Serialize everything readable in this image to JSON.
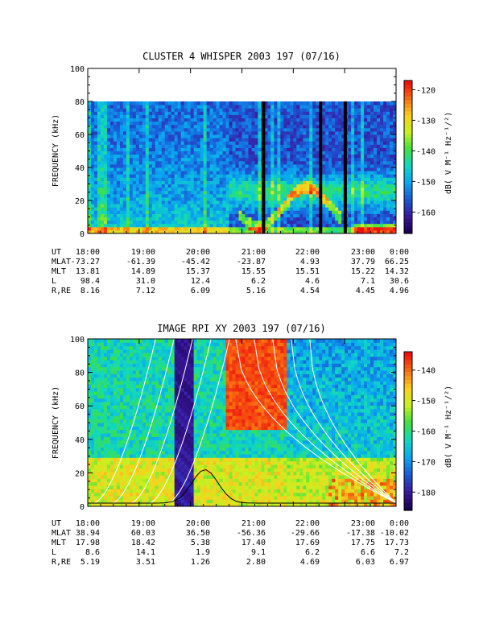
{
  "chart_data": [
    {
      "type": "heatmap",
      "title": "CLUSTER 4 WHISPER 2003 197 (07/16)",
      "ylabel": "FREQUENCY (kHz)",
      "ylim": [
        0,
        100
      ],
      "y_ticks": [
        "0",
        "20",
        "40",
        "60",
        "80",
        "100"
      ],
      "data_max_frequency_khz": 80,
      "x_ticks": [
        "18:00",
        "19:00",
        "20:00",
        "21:00",
        "22:00",
        "23:00",
        "0:00"
      ],
      "colorbar": {
        "label": "dB( V M⁻¹ Hz⁻¹/²)",
        "ticks": [
          "-120",
          "-130",
          "-140",
          "-150",
          "-160"
        ],
        "range": [
          -167,
          -117
        ]
      },
      "ephemeris": [
        {
          "label": "UT",
          "values": [
            "18:00",
            "19:00",
            "20:00",
            "21:00",
            "22:00",
            "23:00",
            "0:00"
          ]
        },
        {
          "label": "MLAT",
          "values": [
            "-73.27",
            "-61.39",
            "-45.42",
            "-23.87",
            "4.93",
            "37.79",
            "66.25"
          ]
        },
        {
          "label": "MLT",
          "values": [
            "13.81",
            "14.89",
            "15.37",
            "15.55",
            "15.51",
            "15.22",
            "14.32"
          ]
        },
        {
          "label": "L",
          "values": [
            "98.4",
            "31.0",
            "12.4",
            "6.2",
            "4.6",
            "7.1",
            "30.6"
          ]
        },
        {
          "label": "R,RE",
          "values": [
            "8.16",
            "7.12",
            "6.09",
            "5.16",
            "4.54",
            "4.45",
            "4.96"
          ]
        }
      ]
    },
    {
      "type": "heatmap",
      "title": "IMAGE RPI XY 2003 197 (07/16)",
      "ylabel": "FREQUENCY (kHz)",
      "ylim": [
        0,
        100
      ],
      "y_ticks": [
        "0",
        "20",
        "40",
        "60",
        "80",
        "100"
      ],
      "x_ticks": [
        "18:00",
        "19:00",
        "20:00",
        "21:00",
        "22:00",
        "23:00",
        "0:00"
      ],
      "colorbar": {
        "label": "dB( V M⁻¹ Hz⁻¹/²)",
        "ticks": [
          "-140",
          "-150",
          "-160",
          "-170",
          "-180"
        ],
        "range": [
          -186,
          -134
        ]
      },
      "ephemeris": [
        {
          "label": "UT",
          "values": [
            "18:00",
            "19:00",
            "20:00",
            "21:00",
            "22:00",
            "23:00",
            "0:00"
          ]
        },
        {
          "label": "MLAT",
          "values": [
            "38.94",
            "60.03",
            "36.50",
            "-56.36",
            "-29.66",
            "-17.38",
            "-10.02"
          ]
        },
        {
          "label": "MLT",
          "values": [
            "17.98",
            "18.42",
            "5.38",
            "17.40",
            "17.69",
            "17.75",
            "17.73"
          ]
        },
        {
          "label": "L",
          "values": [
            "8.6",
            "14.1",
            "1.9",
            "9.1",
            "6.2",
            "6.6",
            "7.2"
          ]
        },
        {
          "label": "R,RE",
          "values": [
            "5.19",
            "3.51",
            "1.26",
            "2.80",
            "4.69",
            "6.03",
            "6.97"
          ]
        }
      ]
    }
  ],
  "colors": {
    "colormap": [
      "#1a0050",
      "#3a1aa0",
      "#1a5ad8",
      "#0aa8f0",
      "#10d8c0",
      "#40e040",
      "#c8f020",
      "#f8d020",
      "#f87010",
      "#f01010"
    ],
    "background": "#ffffff",
    "overlay": "#ffffff"
  }
}
